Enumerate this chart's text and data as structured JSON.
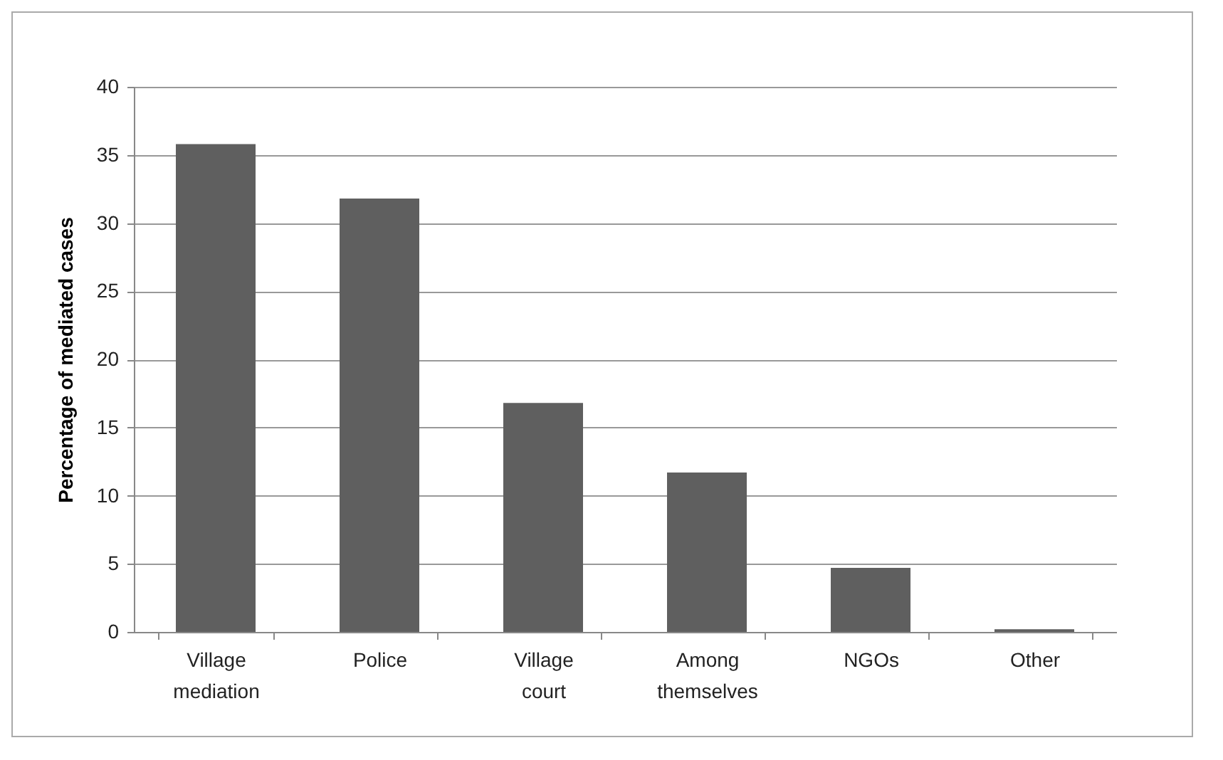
{
  "chart_data": {
    "type": "bar",
    "ylabel": "Percentage of mediated cases",
    "categories": [
      "Village mediation",
      "Police",
      "Village court",
      "Among themselves",
      "NGOs",
      "Other"
    ],
    "values": [
      35.8,
      31.8,
      16.8,
      11.7,
      4.7,
      0.2
    ],
    "color": "#5f5f5f",
    "ylim": [
      0,
      40
    ],
    "yticks": [
      0,
      5,
      10,
      15,
      20,
      25,
      30,
      35,
      40
    ],
    "grid": "y"
  }
}
